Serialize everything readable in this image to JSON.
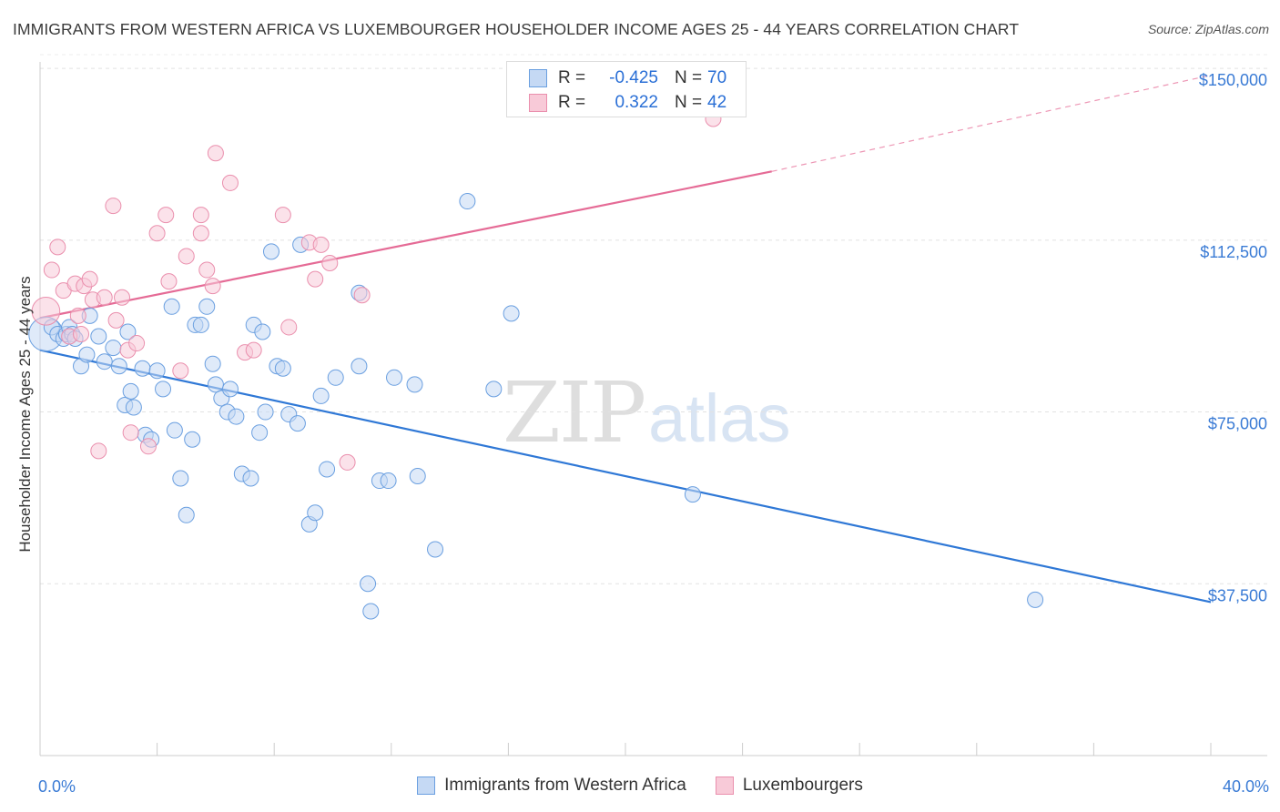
{
  "header": {
    "title": "IMMIGRANTS FROM WESTERN AFRICA VS LUXEMBOURGER HOUSEHOLDER INCOME AGES 25 - 44 YEARS CORRELATION CHART",
    "source": "Source: ZipAtlas.com"
  },
  "legend": {
    "blue": {
      "r_label": "R =",
      "r_value": "-0.425",
      "n_label": "N =",
      "n_value": "70"
    },
    "pink": {
      "r_label": "R =",
      "r_value": "0.322",
      "n_label": "N =",
      "n_value": "42"
    }
  },
  "bottom_legend": {
    "blue_label": "Immigrants from Western Africa",
    "pink_label": "Luxembourgers"
  },
  "watermark": {
    "zip": "ZIP",
    "atlas": "atlas"
  },
  "colors": {
    "blue_fill": "#c5d9f4",
    "blue_stroke": "#6a9fe0",
    "blue_line": "#2f78d6",
    "pink_fill": "#f8cad8",
    "pink_stroke": "#ea8fad",
    "pink_line": "#e56b96",
    "grid": "#e2e2e2",
    "tick_label": "#3a7bd5"
  },
  "chart_data": {
    "type": "scatter",
    "title": "IMMIGRANTS FROM WESTERN AFRICA VS LUXEMBOURGER HOUSEHOLDER INCOME AGES 25 - 44 YEARS CORRELATION CHART",
    "xlabel": "",
    "ylabel": "Householder Income Ages 25 - 44 years",
    "xlim": [
      0,
      40
    ],
    "ylim": [
      0,
      153000
    ],
    "x_tick_labels": [
      "0.0%",
      "40.0%"
    ],
    "y_ticks": [
      37500,
      75000,
      112500,
      150000
    ],
    "y_tick_labels": [
      "$37,500",
      "$75,000",
      "$112,500",
      "$150,000"
    ],
    "grid": "horizontal dashed",
    "legend_placement": "top-center",
    "series": [
      {
        "name": "Immigrants from Western Africa",
        "color": "blue",
        "trend": {
          "x": [
            0,
            40
          ],
          "y": [
            88500,
            33500
          ],
          "style": "solid"
        },
        "points": [
          [
            0.2,
            92000,
            2.2
          ],
          [
            0.4,
            93500,
            1
          ],
          [
            0.6,
            92000,
            1
          ],
          [
            0.8,
            91000,
            1
          ],
          [
            0.9,
            92000,
            1
          ],
          [
            1.0,
            93500,
            1
          ],
          [
            1.1,
            92000,
            1
          ],
          [
            1.2,
            91000,
            1
          ],
          [
            1.4,
            85000,
            1
          ],
          [
            1.6,
            87500,
            1
          ],
          [
            1.7,
            96000,
            1
          ],
          [
            2.0,
            91500,
            1
          ],
          [
            2.2,
            86000,
            1
          ],
          [
            2.5,
            89000,
            1
          ],
          [
            2.7,
            85000,
            1
          ],
          [
            2.9,
            76500,
            1
          ],
          [
            3.0,
            92500,
            1
          ],
          [
            3.1,
            79500,
            1
          ],
          [
            3.2,
            76000,
            1
          ],
          [
            3.5,
            84500,
            1
          ],
          [
            3.6,
            70000,
            1
          ],
          [
            3.8,
            69000,
            1
          ],
          [
            4.0,
            84000,
            1
          ],
          [
            4.2,
            80000,
            1
          ],
          [
            4.5,
            98000,
            1
          ],
          [
            4.6,
            71000,
            1
          ],
          [
            4.8,
            60500,
            1
          ],
          [
            5.0,
            52500,
            1
          ],
          [
            5.2,
            69000,
            1
          ],
          [
            5.3,
            94000,
            1
          ],
          [
            5.5,
            94000,
            1
          ],
          [
            5.7,
            98000,
            1
          ],
          [
            5.9,
            85500,
            1
          ],
          [
            6.0,
            81000,
            1
          ],
          [
            6.2,
            78000,
            1
          ],
          [
            6.4,
            75000,
            1
          ],
          [
            6.5,
            80000,
            1
          ],
          [
            6.7,
            74000,
            1
          ],
          [
            6.9,
            61500,
            1
          ],
          [
            7.2,
            60500,
            1
          ],
          [
            7.3,
            94000,
            1
          ],
          [
            7.5,
            70500,
            1
          ],
          [
            7.6,
            92500,
            1
          ],
          [
            7.7,
            75000,
            1
          ],
          [
            7.9,
            110000,
            1
          ],
          [
            8.1,
            85000,
            1
          ],
          [
            8.3,
            84500,
            1
          ],
          [
            8.5,
            74500,
            1
          ],
          [
            8.8,
            72500,
            1
          ],
          [
            8.9,
            111500,
            1
          ],
          [
            9.2,
            50500,
            1
          ],
          [
            9.4,
            53000,
            1
          ],
          [
            9.6,
            78500,
            1
          ],
          [
            9.8,
            62500,
            1
          ],
          [
            10.1,
            82500,
            1
          ],
          [
            10.9,
            101000,
            1
          ],
          [
            10.9,
            85000,
            1
          ],
          [
            11.2,
            37500,
            1
          ],
          [
            11.3,
            31500,
            1
          ],
          [
            11.6,
            60000,
            1
          ],
          [
            11.9,
            60000,
            1
          ],
          [
            12.1,
            82500,
            1
          ],
          [
            12.8,
            81000,
            1
          ],
          [
            12.9,
            61000,
            1
          ],
          [
            13.5,
            45000,
            1
          ],
          [
            14.6,
            121000,
            1
          ],
          [
            15.5,
            80000,
            1
          ],
          [
            16.1,
            96500,
            1
          ],
          [
            22.3,
            57000,
            1
          ],
          [
            34.0,
            34000,
            1
          ]
        ]
      },
      {
        "name": "Luxembourgers",
        "color": "pink",
        "trend": {
          "x": [
            0,
            25
          ],
          "y": [
            95500,
            127500
          ],
          "style": "solid",
          "extension": {
            "x": [
              25,
              40
            ],
            "y": [
              127500,
              148500
            ],
            "style": "dashed"
          }
        },
        "points": [
          [
            0.2,
            97000,
            1.8
          ],
          [
            0.4,
            106000,
            1
          ],
          [
            0.6,
            111000,
            1
          ],
          [
            0.8,
            101500,
            1
          ],
          [
            1.0,
            91500,
            1
          ],
          [
            1.2,
            103000,
            1
          ],
          [
            1.3,
            96000,
            1
          ],
          [
            1.4,
            92000,
            1
          ],
          [
            1.5,
            102500,
            1
          ],
          [
            1.7,
            104000,
            1
          ],
          [
            1.8,
            99500,
            1
          ],
          [
            2.0,
            66500,
            1
          ],
          [
            2.2,
            100000,
            1
          ],
          [
            2.5,
            120000,
            1
          ],
          [
            2.6,
            95000,
            1
          ],
          [
            2.8,
            100000,
            1
          ],
          [
            3.0,
            88500,
            1
          ],
          [
            3.1,
            70500,
            1
          ],
          [
            3.3,
            90000,
            1
          ],
          [
            3.7,
            67500,
            1
          ],
          [
            4.0,
            114000,
            1
          ],
          [
            4.3,
            118000,
            1
          ],
          [
            4.4,
            103500,
            1
          ],
          [
            4.8,
            84000,
            1
          ],
          [
            5.0,
            109000,
            1
          ],
          [
            5.5,
            118000,
            1
          ],
          [
            5.5,
            114000,
            1
          ],
          [
            5.7,
            106000,
            1
          ],
          [
            5.9,
            102500,
            1
          ],
          [
            6.0,
            131500,
            1
          ],
          [
            6.5,
            125000,
            1
          ],
          [
            7.0,
            88000,
            1
          ],
          [
            7.3,
            88500,
            1
          ],
          [
            8.3,
            118000,
            1
          ],
          [
            8.5,
            93500,
            1
          ],
          [
            9.2,
            112000,
            1
          ],
          [
            9.4,
            104000,
            1
          ],
          [
            9.6,
            111500,
            1
          ],
          [
            9.9,
            107500,
            1
          ],
          [
            10.5,
            64000,
            1
          ],
          [
            11.0,
            100500,
            1
          ],
          [
            23.0,
            139000,
            1
          ]
        ]
      }
    ]
  }
}
